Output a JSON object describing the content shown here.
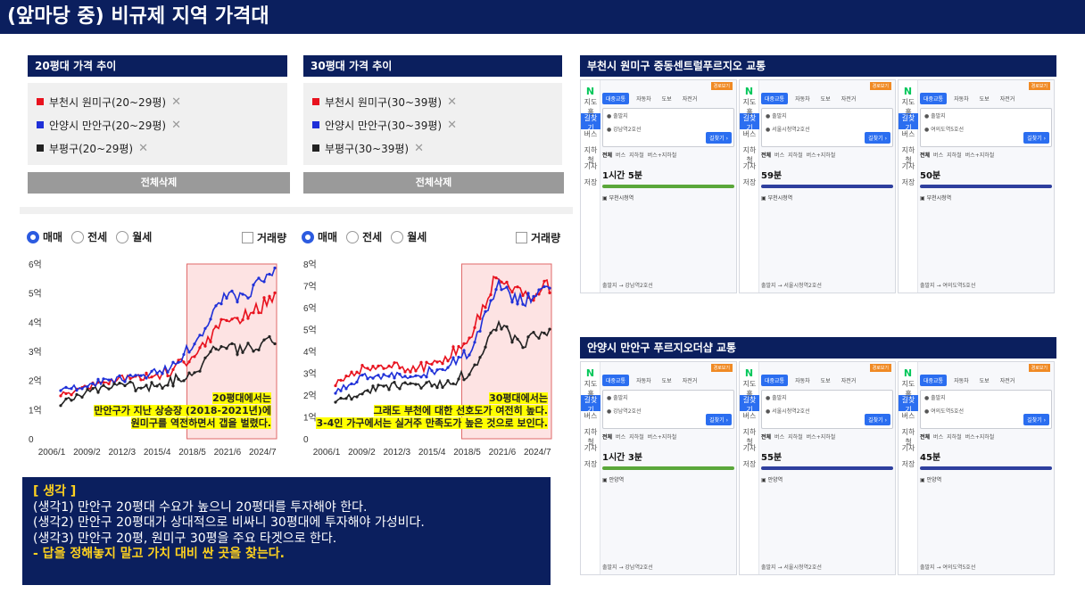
{
  "title": "(앞마당 중) 비규제 지역 가격대",
  "panels": [
    {
      "header": "20평대 가격 추이",
      "filters": [
        {
          "label": "부천시 원미구(20~29평)",
          "color": "#e8121e"
        },
        {
          "label": "안양시 만안구(20~29평)",
          "color": "#1f30d8"
        },
        {
          "label": "부평구(20~29평)",
          "color": "#222222"
        }
      ],
      "delete_all": "전체삭제",
      "radios": [
        "매매",
        "전세",
        "월세"
      ],
      "volume_label": "거래량",
      "note_lines": [
        "20평대에서는",
        "만안구가 지난 상승장 (2018-2021년)에",
        "원미구를 역전하면서 갭을 벌렸다."
      ]
    },
    {
      "header": "30평대 가격 추이",
      "filters": [
        {
          "label": "부천시 원미구(30~39평)",
          "color": "#e8121e"
        },
        {
          "label": "안양시 만안구(30~39평)",
          "color": "#1f30d8"
        },
        {
          "label": "부평구(30~39평)",
          "color": "#222222"
        }
      ],
      "delete_all": "전체삭제",
      "radios": [
        "매매",
        "전세",
        "월세"
      ],
      "volume_label": "거래량",
      "note_lines": [
        "30평대에서는",
        "그래도 부천에 대한 선호도가 여전히 높다.",
        "3-4인 가구에서는 실거주 만족도가 높은 것으로 보인다."
      ]
    }
  ],
  "chart_data": [
    {
      "type": "line",
      "x_ticks": [
        "2006/1",
        "2009/2",
        "2012/3",
        "2015/4",
        "2018/5",
        "2021/6",
        "2024/7"
      ],
      "y_ticks": [
        "0",
        "1억",
        "2억",
        "3억",
        "4억",
        "5억",
        "6억"
      ],
      "ylim": [
        0,
        6
      ],
      "series": [
        {
          "name": "부천시 원미구(20~29평)",
          "color": "#e8121e",
          "values": [
            1.5,
            1.8,
            2.0,
            2.1,
            2.3,
            2.9,
            3.9,
            4.3,
            4.8
          ]
        },
        {
          "name": "안양시 만안구(20~29평)",
          "color": "#1f30d8",
          "values": [
            1.6,
            1.9,
            2.0,
            2.1,
            2.4,
            3.3,
            4.8,
            5.0,
            5.7
          ]
        },
        {
          "name": "부평구(20~29평)",
          "color": "#222222",
          "values": [
            1.2,
            1.6,
            1.8,
            1.8,
            1.9,
            2.3,
            3.2,
            3.1,
            3.5
          ]
        }
      ],
      "highlight_range": [
        "2018/5",
        "2025/1"
      ]
    },
    {
      "type": "line",
      "x_ticks": [
        "2006/1",
        "2009/2",
        "2012/3",
        "2015/4",
        "2018/5",
        "2021/6",
        "2024/7"
      ],
      "y_ticks": [
        "0",
        "1억",
        "2억",
        "3억",
        "4억",
        "5억",
        "6억",
        "7억",
        "8억"
      ],
      "ylim": [
        0,
        8
      ],
      "series": [
        {
          "name": "부천시 원미구(30~39평)",
          "color": "#e8121e",
          "values": [
            2.5,
            3.2,
            3.4,
            3.2,
            3.6,
            4.5,
            7.5,
            6.5,
            7.0
          ]
        },
        {
          "name": "안양시 만안구(30~39평)",
          "color": "#1f30d8",
          "values": [
            2.2,
            2.8,
            2.9,
            2.9,
            3.2,
            4.0,
            7.0,
            6.2,
            6.8
          ]
        },
        {
          "name": "부평구(30~39평)",
          "color": "#222222",
          "values": [
            1.6,
            2.2,
            2.4,
            2.4,
            2.5,
            3.0,
            5.2,
            4.4,
            4.8
          ]
        }
      ],
      "highlight_range": [
        "2018/5",
        "2025/1"
      ]
    }
  ],
  "think": {
    "heading": "[ 생각 ]",
    "lines": [
      "(생각1) 만안구 20평대 수요가 높으니 20평대를 투자해야 한다.",
      "(생각2) 만안구 20평대가 상대적으로 비싸니 30평대에 투자해야 가성비다.",
      "(생각3) 만안구 20평, 원미구 30평을 주요 타겟으로 한다."
    ],
    "highlight": "- 답을 정해놓지 말고 가치 대비 싼 곳을 찾는다."
  },
  "transit": [
    {
      "header": "부천시 원미구 중동센트럴푸르지오 교통",
      "cards": [
        {
          "dest": "강남역2호선",
          "time": "1시간 5분",
          "line1": "부천시청역",
          "foot": "출발지 → 강남역2호선"
        },
        {
          "dest": "서울시청역2호선",
          "time": "59분",
          "line1": "부천시청역",
          "foot": "출발지 → 서울시청역2호선"
        },
        {
          "dest": "여의도역5호선",
          "time": "50분",
          "line1": "부천시청역",
          "foot": "출발지 → 여의도역5호선"
        }
      ]
    },
    {
      "header": "안양시 만안구 푸르지오더샵 교통",
      "cards": [
        {
          "dest": "강남역2호선",
          "time": "1시간 3분",
          "line1": "안양역",
          "foot": "출발지 → 강남역2호선"
        },
        {
          "dest": "서울시청역2호선",
          "time": "55분",
          "line1": "안양역",
          "foot": "출발지 → 서울시청역2호선"
        },
        {
          "dest": "여의도역5호선",
          "time": "45분",
          "line1": "안양역",
          "foot": "출발지 → 여의도역5호선"
        }
      ]
    }
  ],
  "map_ui": {
    "tabs": [
      "대중교통",
      "자동차",
      "도보",
      "자전거"
    ],
    "origin": "출발지",
    "go": "길찾기",
    "orange": "경로보기",
    "result_tabs": [
      "전체",
      "버스",
      "지하철",
      "버스+지하철"
    ],
    "side_icons": [
      "N",
      "지도홈",
      "길찾기",
      "버스",
      "지하철",
      "기차",
      "저장"
    ]
  }
}
